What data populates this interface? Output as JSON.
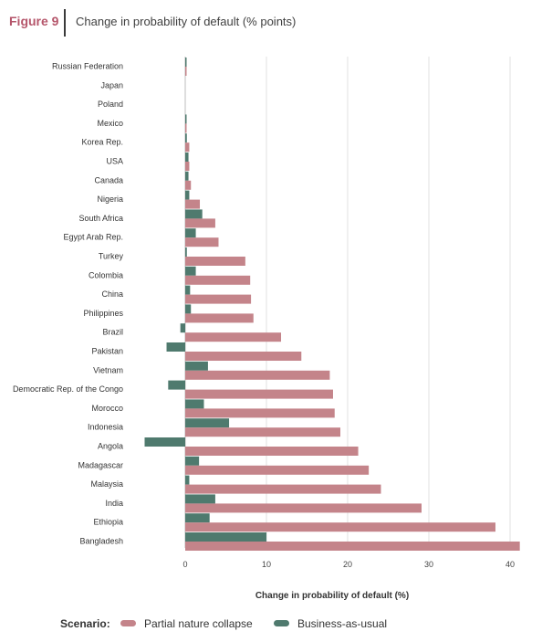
{
  "figure": {
    "label": "Figure 9",
    "title": "Change in probability of default (% points)"
  },
  "colors": {
    "pnc": "#c4848a",
    "bau": "#4f7a6e",
    "grid": "#e2e2e2"
  },
  "legend": {
    "title": "Scenario:",
    "items": [
      {
        "label": "Partial nature collapse",
        "color": "#c4848a"
      },
      {
        "label": "Business-as-usual",
        "color": "#4f7a6e"
      }
    ]
  },
  "chart_data": {
    "type": "bar",
    "orientation": "horizontal",
    "title": "",
    "xlabel": "Change in probability of default (%)",
    "ylabel": "",
    "xlim": [
      -5,
      41
    ],
    "xticks": [
      0,
      10,
      20,
      30,
      40
    ],
    "grid": "vertical",
    "legend_position": "bottom",
    "categories": [
      "Russian Federation",
      "Japan",
      "Poland",
      "Mexico",
      "Korea Rep.",
      "USA",
      "Canada",
      "Nigeria",
      "South Africa",
      "Egypt Arab Rep.",
      "Turkey",
      "Colombia",
      "China",
      "Philippines",
      "Brazil",
      "Pakistan",
      "Vietnam",
      "Democratic Rep. of the Congo",
      "Morocco",
      "Indonesia",
      "Angola",
      "Madagascar",
      "Malaysia",
      "India",
      "Ethiopia",
      "Bangladesh"
    ],
    "series": [
      {
        "name": "Partial nature collapse",
        "values": [
          0.1,
          0,
          0,
          0.1,
          0.5,
          0.5,
          0.7,
          1.8,
          3.7,
          4.1,
          7.4,
          8.0,
          8.1,
          8.4,
          11.8,
          14.3,
          17.8,
          18.2,
          18.4,
          19.1,
          21.3,
          22.6,
          24.1,
          29.1,
          38.2,
          41.2
        ]
      },
      {
        "name": "Business-as-usual",
        "values": [
          0.1,
          0,
          0,
          0.1,
          0.2,
          0.4,
          0.4,
          0.5,
          2.1,
          1.3,
          0.2,
          1.3,
          0.6,
          0.7,
          -0.6,
          -2.3,
          2.8,
          -2.1,
          2.3,
          5.4,
          -5.0,
          1.7,
          0.5,
          3.7,
          3.0,
          10.0
        ]
      }
    ]
  }
}
